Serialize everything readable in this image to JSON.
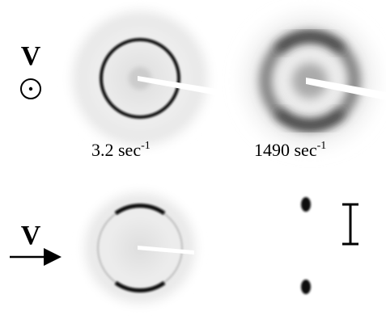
{
  "rows": [
    {
      "direction_label": "V",
      "panels": [
        {
          "label": "3.2 sec",
          "exponent": "-1"
        },
        {
          "label": "1490 sec",
          "exponent": "-1"
        }
      ]
    },
    {
      "direction_label": "V"
    }
  ]
}
